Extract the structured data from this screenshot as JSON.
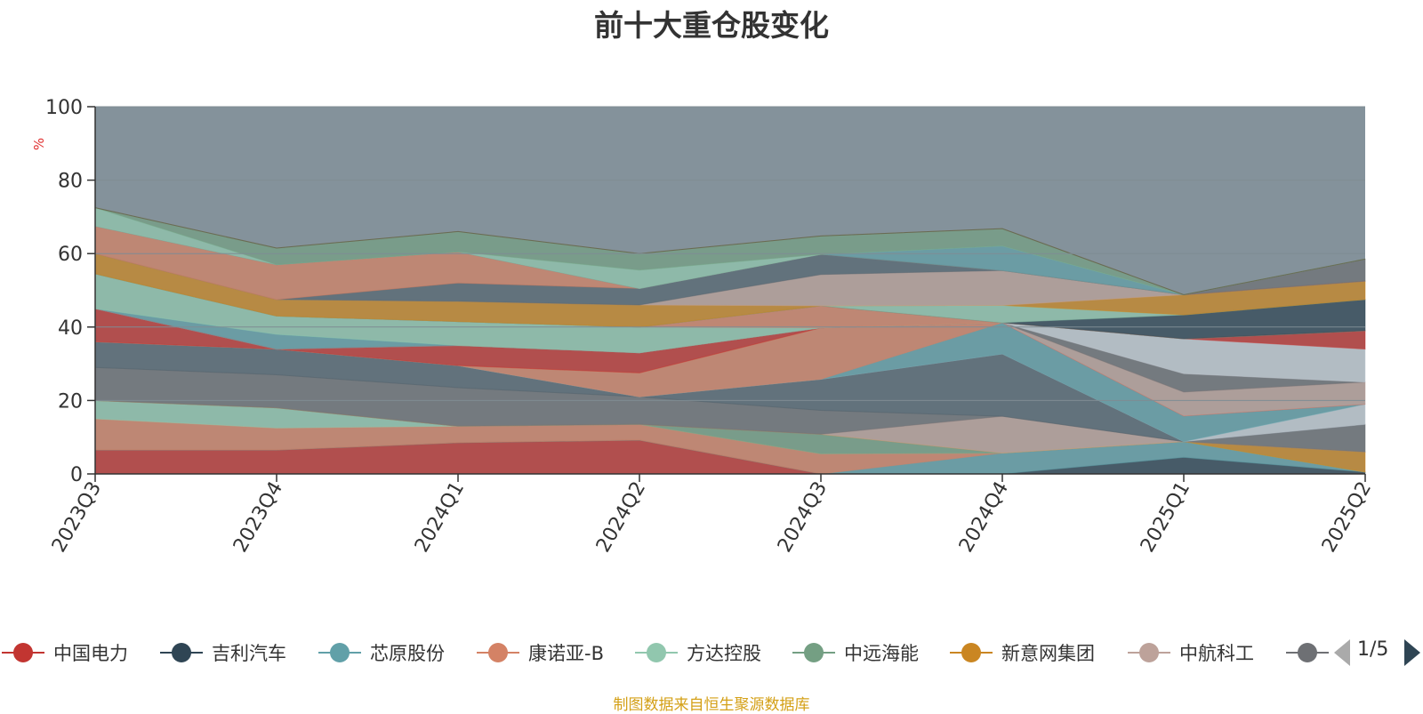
{
  "chart_data": {
    "type": "area",
    "title": "前十大重仓股变化",
    "ylabel": "%",
    "ylim": [
      0,
      100
    ],
    "y_ticks": [
      "0",
      "20",
      "40",
      "60",
      "80",
      "100"
    ],
    "categories": [
      "2023Q3",
      "2023Q4",
      "2024Q1",
      "2024Q2",
      "2024Q3",
      "2024Q4",
      "2025Q1",
      "2025Q2"
    ],
    "stacked": true,
    "grid": true,
    "legend_position": "bottom",
    "series": [
      {
        "name": "中国电力",
        "color": "#c23531",
        "values": [
          6.5,
          6.5,
          8.5,
          9.2,
          0,
          0,
          0,
          0
        ]
      },
      {
        "name": "吉利汽车",
        "color": "#2f4554",
        "values": [
          0,
          0,
          0,
          0,
          0,
          0,
          4.5,
          0.5
        ]
      },
      {
        "name": "芯原股份",
        "color": "#61a0a8",
        "values": [
          0,
          0,
          0,
          0,
          0,
          5.7,
          4.3,
          0
        ]
      },
      {
        "name": "康诺亚-B",
        "color": "#d48265",
        "values": [
          8.5,
          6.0,
          4.5,
          4.3,
          5.5,
          0,
          0,
          0
        ]
      },
      {
        "name": "方达控股",
        "color": "#91c7ae",
        "values": [
          5.0,
          5.5,
          0,
          0,
          0,
          0,
          0,
          0
        ]
      },
      {
        "name": "中远海能",
        "color": "#749f83",
        "values": [
          0,
          0,
          0,
          0,
          5.3,
          0,
          0,
          0
        ]
      },
      {
        "name": "新意网集团",
        "color": "#ca8622",
        "values": [
          0,
          0,
          0,
          0,
          0,
          0,
          0,
          5.5
        ]
      },
      {
        "name": "中航科工",
        "color": "#bda29a",
        "values": [
          0,
          0,
          0,
          0,
          0,
          10.0,
          0,
          0
        ]
      },
      {
        "name": "",
        "color": "#6e7074",
        "values": [
          9.0,
          9.0,
          10.5,
          7.5,
          6.5,
          0,
          0,
          7.5
        ]
      },
      {
        "name": "",
        "color": "#546570",
        "values": [
          7.0,
          7.0,
          6.0,
          0,
          8.5,
          17.0,
          0,
          0
        ]
      },
      {
        "name": "",
        "color": "#c4ccd3",
        "values": [
          0,
          0,
          0,
          0,
          0,
          0,
          0,
          5.5
        ]
      },
      {
        "name": "",
        "color": "#61a0a8",
        "values": [
          0,
          0,
          0,
          0,
          0,
          8.5,
          7.0,
          0
        ]
      },
      {
        "name": "",
        "color": "#d48265",
        "values": [
          0,
          0,
          0,
          6.5,
          14.0,
          0,
          0,
          0
        ]
      },
      {
        "name": "",
        "color": "#c23531",
        "values": [
          9.0,
          0,
          5.5,
          5.5,
          0,
          0,
          0,
          0
        ]
      },
      {
        "name": "",
        "color": "#bda29a",
        "values": [
          0,
          0,
          0,
          0,
          0,
          0,
          6.5,
          6.0
        ]
      },
      {
        "name": "",
        "color": "#6e7074",
        "values": [
          0,
          0,
          0,
          0,
          0,
          0,
          5.0,
          0
        ]
      },
      {
        "name": "",
        "color": "#c4ccd3",
        "values": [
          0,
          0,
          0,
          0,
          0,
          0,
          9.5,
          9.0
        ]
      },
      {
        "name": "",
        "color": "#c23531",
        "values": [
          0,
          0,
          0,
          0,
          0,
          0,
          0,
          5.0
        ]
      },
      {
        "name": "",
        "color": "#61a0a8",
        "values": [
          0,
          4.0,
          0,
          0,
          0,
          0,
          0,
          0
        ]
      },
      {
        "name": "",
        "color": "#91c7ae",
        "values": [
          9.5,
          5.0,
          6.5,
          7.0,
          0,
          0,
          0,
          0
        ]
      },
      {
        "name": "",
        "color": "#d48265",
        "values": [
          0,
          0,
          0,
          0,
          6.0,
          0,
          0,
          0
        ]
      },
      {
        "name": "",
        "color": "#2f4554",
        "values": [
          0,
          0,
          0,
          0,
          0,
          0,
          6.5,
          8.5
        ]
      },
      {
        "name": "",
        "color": "#91c7ae",
        "values": [
          0,
          0,
          0,
          0,
          0,
          4.7,
          0,
          0
        ]
      },
      {
        "name": "",
        "color": "#ca8622",
        "values": [
          5.5,
          4.5,
          5.5,
          6.0,
          0,
          0,
          5.5,
          5.0
        ]
      },
      {
        "name": "",
        "color": "#bda29a",
        "values": [
          0,
          0,
          0,
          0,
          8.5,
          9.5,
          0,
          0
        ]
      },
      {
        "name": "",
        "color": "#546570",
        "values": [
          0,
          0,
          5.0,
          4.5,
          5.5,
          0,
          0,
          0
        ]
      },
      {
        "name": "",
        "color": "#d48265",
        "values": [
          7.5,
          9.5,
          8.5,
          0,
          0,
          0,
          0,
          0
        ]
      },
      {
        "name": "",
        "color": "#6e7074",
        "values": [
          0,
          0,
          0,
          0,
          0,
          0,
          0,
          6.0
        ]
      },
      {
        "name": "",
        "color": "#61a0a8",
        "values": [
          0,
          0,
          0,
          0,
          0,
          6.7,
          0,
          0
        ]
      },
      {
        "name": "",
        "color": "#91c7ae",
        "values": [
          5.0,
          0,
          0,
          5.0,
          0,
          0,
          0,
          0
        ]
      },
      {
        "name": "",
        "color": "#749f83",
        "values": [
          0,
          4.5,
          5.5,
          4.5,
          5.0,
          4.7,
          0,
          0
        ]
      },
      {
        "name": "",
        "color": "#ca8622",
        "values": [
          0,
          0,
          0,
          0,
          0,
          0,
          0,
          0
        ]
      },
      {
        "name": "",
        "color": "#2f4554",
        "values": [
          0,
          0,
          0,
          0,
          0,
          0,
          0,
          0
        ]
      }
    ]
  },
  "legend": {
    "items": [
      {
        "label": "中国电力",
        "color": "#c23531"
      },
      {
        "label": "吉利汽车",
        "color": "#2f4554"
      },
      {
        "label": "芯原股份",
        "color": "#61a0a8"
      },
      {
        "label": "康诺亚-B",
        "color": "#d48265"
      },
      {
        "label": "方达控股",
        "color": "#91c7ae"
      },
      {
        "label": "中远海能",
        "color": "#749f83"
      },
      {
        "label": "新意网集团",
        "color": "#ca8622"
      },
      {
        "label": "中航科工",
        "color": "#bda29a"
      },
      {
        "label": "",
        "color": "#6e7074"
      }
    ],
    "page_indicator": "1/5"
  },
  "footer": {
    "source_note": "制图数据来自恒生聚源数据库"
  },
  "colors": {
    "background_remainder": "#84929b",
    "axis": "#333333",
    "grid": "#7f8c93",
    "ylabel_color": "#e03030",
    "source_color": "#d4a017"
  }
}
